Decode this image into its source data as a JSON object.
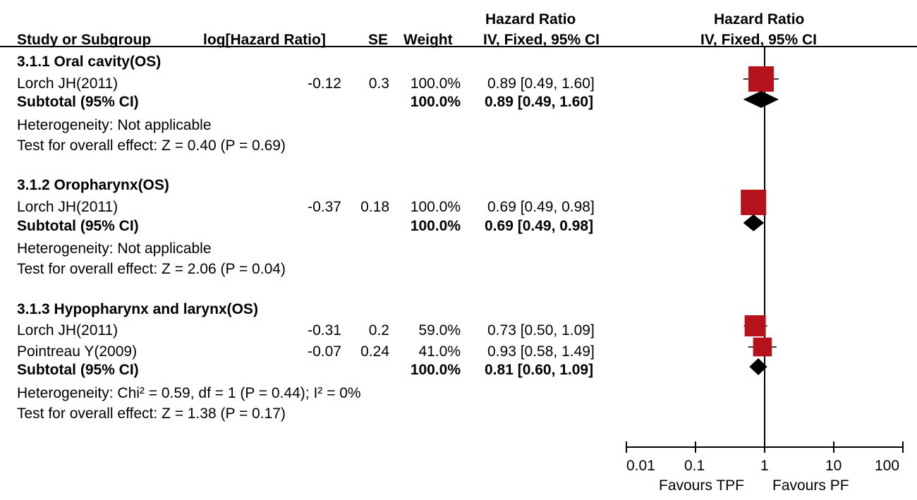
{
  "header": {
    "study": "Study or Subgroup",
    "loghr": "log[Hazard Ratio]",
    "se": "SE",
    "weight": "Weight",
    "hr_title": "Hazard Ratio",
    "hr_method": "IV, Fixed, 95% CI",
    "plot_title": "Hazard Ratio",
    "plot_method": "IV, Fixed, 95% CI"
  },
  "groups": [
    {
      "title": "3.1.1 Oral cavity(OS)",
      "studies": [
        {
          "name": "Lorch JH(2011)",
          "loghr": "-0.12",
          "se": "0.3",
          "weight": "100.0%",
          "ci": "0.89 [0.49, 1.60]"
        }
      ],
      "subtotal": {
        "label": "Subtotal (95% CI)",
        "weight": "100.0%",
        "ci": "0.89 [0.49, 1.60]"
      },
      "heterogeneity": "Heterogeneity: Not applicable",
      "overall": "Test for overall effect: Z = 0.40 (P = 0.69)"
    },
    {
      "title": "3.1.2 Oropharynx(OS)",
      "studies": [
        {
          "name": "Lorch JH(2011)",
          "loghr": "-0.37",
          "se": "0.18",
          "weight": "100.0%",
          "ci": "0.69 [0.49, 0.98]"
        }
      ],
      "subtotal": {
        "label": "Subtotal (95% CI)",
        "weight": "100.0%",
        "ci": "0.69 [0.49, 0.98]"
      },
      "heterogeneity": "Heterogeneity: Not applicable",
      "overall": "Test for overall effect: Z = 2.06 (P = 0.04)"
    },
    {
      "title": "3.1.3 Hypopharynx and larynx(OS)",
      "studies": [
        {
          "name": "Lorch JH(2011)",
          "loghr": "-0.31",
          "se": "0.2",
          "weight": "59.0%",
          "ci": "0.73 [0.50, 1.09]"
        },
        {
          "name": "Pointreau Y(2009)",
          "loghr": "-0.07",
          "se": "0.24",
          "weight": "41.0%",
          "ci": "0.93 [0.58, 1.49]"
        }
      ],
      "subtotal": {
        "label": "Subtotal (95% CI)",
        "weight": "100.0%",
        "ci": "0.81 [0.60, 1.09]"
      },
      "heterogeneity": "Heterogeneity: Chi² = 0.59, df = 1 (P = 0.44); I² = 0%",
      "overall": "Test for overall effect: Z = 1.38 (P = 0.17)"
    }
  ],
  "axis": {
    "ticks": [
      "0.01",
      "0.1",
      "1",
      "10",
      "100"
    ],
    "favours_left": "Favours TPF",
    "favours_right": "Favours PF"
  },
  "chart_data": {
    "type": "forest",
    "scale": "log",
    "xlim": [
      0.01,
      100
    ],
    "null_value": 1,
    "colors": {
      "study": "#b5121b",
      "diamond": "#000000"
    },
    "studies": [
      {
        "group": "3.1.1 Oral cavity(OS)",
        "name": "Lorch JH(2011)",
        "hr": 0.89,
        "lo": 0.49,
        "hi": 1.6,
        "weight": 100.0
      },
      {
        "group": "3.1.2 Oropharynx(OS)",
        "name": "Lorch JH(2011)",
        "hr": 0.69,
        "lo": 0.49,
        "hi": 0.98,
        "weight": 100.0
      },
      {
        "group": "3.1.3 Hypopharynx and larynx(OS)",
        "name": "Lorch JH(2011)",
        "hr": 0.73,
        "lo": 0.5,
        "hi": 1.09,
        "weight": 59.0
      },
      {
        "group": "3.1.3 Hypopharynx and larynx(OS)",
        "name": "Pointreau Y(2009)",
        "hr": 0.93,
        "lo": 0.58,
        "hi": 1.49,
        "weight": 41.0
      }
    ],
    "subtotals": [
      {
        "group": "3.1.1 Oral cavity(OS)",
        "hr": 0.89,
        "lo": 0.49,
        "hi": 1.6
      },
      {
        "group": "3.1.2 Oropharynx(OS)",
        "hr": 0.69,
        "lo": 0.49,
        "hi": 0.98
      },
      {
        "group": "3.1.3 Hypopharynx and larynx(OS)",
        "hr": 0.81,
        "lo": 0.6,
        "hi": 1.09
      }
    ]
  }
}
